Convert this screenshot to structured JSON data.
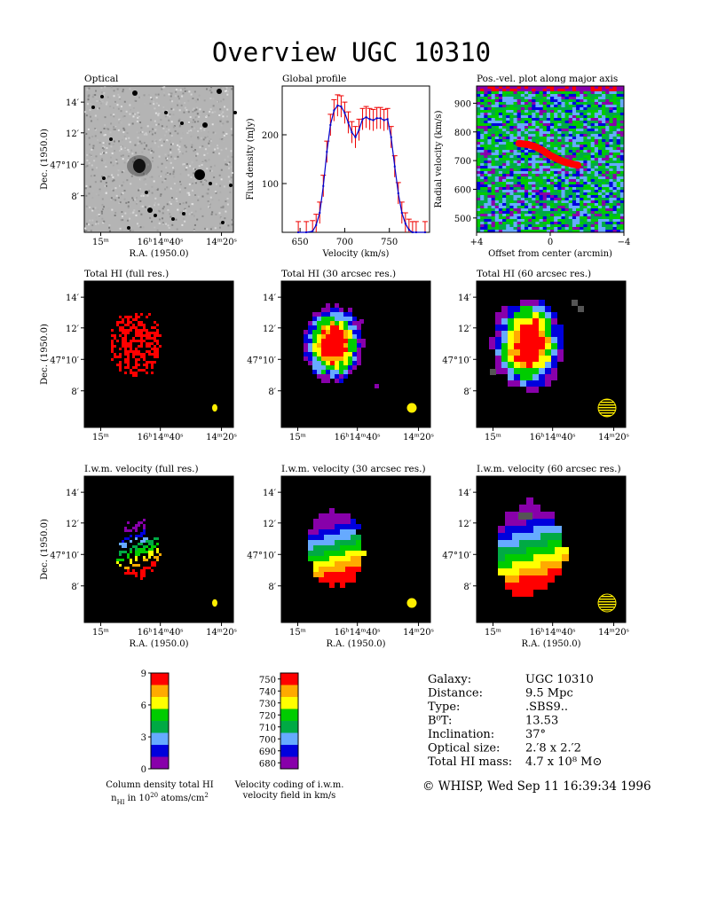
{
  "title": "Overview UGC 10310",
  "panels": {
    "optical": "Optical",
    "profile": "Global profile",
    "pv": "Pos.-vel. plot along major axis",
    "hi_full": "Total HI (full res.)",
    "hi_30": "Total HI (30 arcsec res.)",
    "hi_60": "Total HI (60 arcsec res.)",
    "vel_full": "I.w.m. velocity (full res.)",
    "vel_30": "I.w.m. velocity (30 arcsec res.)",
    "vel_60": "I.w.m. velocity (60 arcsec res.)"
  },
  "axes": {
    "dec_label": "Dec. (1950.0)",
    "ra_label": "R.A. (1950.0)",
    "dec_ticks": [
      "14′",
      "12′",
      "47°10′",
      "8′"
    ],
    "ra_ticks": [
      "15ᵐ",
      "16ʰ14ᵐ40ˢ",
      "14ᵐ20ˢ"
    ],
    "profile_x_label": "Velocity (km/s)",
    "profile_y_label": "Flux density (mJy)",
    "pv_x_label": "Offset from center (arcmin)",
    "pv_y_label": "Radial velocity (km/s)"
  },
  "chart_data": [
    {
      "type": "line",
      "name": "global-profile",
      "title": "Global profile",
      "xlabel": "Velocity (km/s)",
      "ylabel": "Flux density (mJy)",
      "xlim": [
        630,
        795
      ],
      "ylim": [
        0,
        300
      ],
      "xticks": [
        650,
        700,
        750
      ],
      "yticks": [
        100,
        200
      ],
      "x": [
        648,
        657,
        664,
        668,
        672,
        676,
        680,
        684,
        688,
        692,
        696,
        700,
        704,
        708,
        712,
        716,
        720,
        724,
        728,
        732,
        736,
        740,
        744,
        748,
        752,
        756,
        760,
        764,
        768,
        772,
        776,
        780,
        790
      ],
      "values": [
        0,
        0,
        2,
        15,
        40,
        95,
        165,
        220,
        250,
        260,
        258,
        245,
        225,
        205,
        195,
        210,
        232,
        236,
        232,
        230,
        234,
        234,
        230,
        232,
        195,
        135,
        80,
        40,
        18,
        5,
        0,
        0,
        0
      ],
      "error": 22
    },
    {
      "type": "heatmap",
      "name": "pos-vel",
      "title": "Pos.-vel. plot along major axis",
      "xlabel": "Offset from center (arcmin)",
      "ylabel": "Radial velocity (km/s)",
      "xlim": [
        4,
        -4
      ],
      "ylim": [
        450,
        960
      ],
      "xtick_labels": [
        "+4",
        "0",
        "−4"
      ],
      "yticks": [
        500,
        600,
        700,
        800,
        900
      ]
    }
  ],
  "colorbars": {
    "hi": {
      "ticks": [
        "9",
        "6",
        "3",
        "0"
      ],
      "caption1": "Column density total HI",
      "caption2_pre": "n",
      "caption2_sub": "HI",
      "caption2_mid": " in 10",
      "caption2_sup": "20",
      "caption2_post": " atoms/cm",
      "caption2_sup2": "2"
    },
    "velocity": {
      "ticks": [
        "750",
        "740",
        "730",
        "720",
        "710",
        "700",
        "690",
        "680"
      ],
      "caption1": "Velocity coding of i.w.m.",
      "caption2": "velocity field in km/s"
    },
    "colors": [
      "#8800aa",
      "#0000dd",
      "#66aaff",
      "#00aa44",
      "#00cc00",
      "#ffff00",
      "#ffaa00",
      "#ff0000"
    ]
  },
  "info": {
    "rows": [
      {
        "key": "Galaxy:",
        "value": "UGC 10310"
      },
      {
        "key": "Distance:",
        "value": "9.5 Mpc"
      },
      {
        "key": "Type:",
        "value": ".SBS9.."
      },
      {
        "key": "B⁰T:",
        "value": "13.53"
      },
      {
        "key": "Inclination:",
        "value": "37°"
      },
      {
        "key": "Optical size:",
        "value": "2.′8 x 2.′2"
      },
      {
        "key": "Total HI mass:",
        "value": "4.7 x 10⁸ M⊙"
      }
    ],
    "footer": "© WHISP, Wed Sep 11 16:39:34 1996"
  }
}
